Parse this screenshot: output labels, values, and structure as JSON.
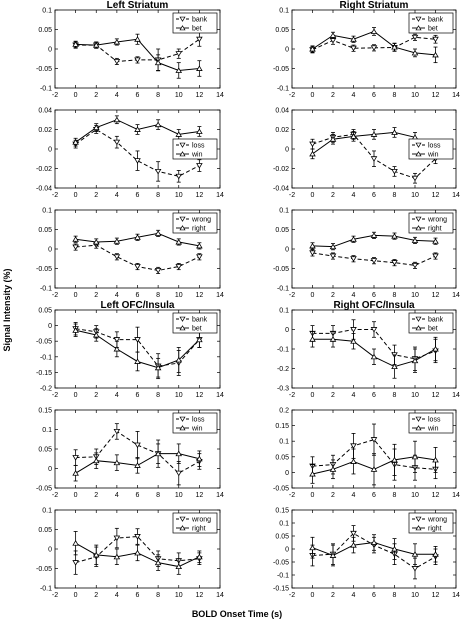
{
  "figure": {
    "ylabel": "Signal Intensity (%)",
    "xlabel": "BOLD Onset Time (s)"
  },
  "chart_data": [
    {
      "type": "line",
      "title": "Left Striatum",
      "x": [
        0,
        2,
        4,
        6,
        8,
        10,
        12
      ],
      "xlim": [
        -2,
        14
      ],
      "xticks": [
        -2,
        0,
        2,
        4,
        6,
        8,
        10,
        12,
        14
      ],
      "ylim": [
        -0.1,
        0.1
      ],
      "yticks": [
        -0.1,
        -0.05,
        0,
        0.05,
        0.1
      ],
      "ytick_labels": [
        "-0.1",
        "-0.05",
        "0",
        "0.05",
        "0.1"
      ],
      "legend_position": "top-right",
      "series": [
        {
          "name": "bank",
          "marker": "triangle-down",
          "dash": true,
          "values": [
            0.01,
            0.01,
            -0.032,
            -0.028,
            -0.028,
            -0.012,
            0.025
          ],
          "errors": [
            0.008,
            0.008,
            0.008,
            0.008,
            0.028,
            0.012,
            0.018
          ]
        },
        {
          "name": "bet",
          "marker": "triangle-up",
          "dash": false,
          "values": [
            0.012,
            0.01,
            0.018,
            0.025,
            -0.035,
            -0.055,
            -0.05
          ],
          "errors": [
            0.008,
            0.008,
            0.008,
            0.013,
            0.02,
            0.02,
            0.02
          ]
        }
      ]
    },
    {
      "type": "line",
      "title": "Right Striatum",
      "x": [
        0,
        2,
        4,
        6,
        8,
        10,
        12
      ],
      "xlim": [
        -2,
        14
      ],
      "xticks": [
        -2,
        0,
        2,
        4,
        6,
        8,
        10,
        12,
        14
      ],
      "ylim": [
        -0.1,
        0.1
      ],
      "yticks": [
        -0.1,
        -0.05,
        0,
        0.05,
        0.1
      ],
      "ytick_labels": [
        "-0.1",
        "-0.05",
        "0",
        "0.05",
        "0.1"
      ],
      "legend_position": "top-right",
      "series": [
        {
          "name": "bank",
          "marker": "triangle-down",
          "dash": true,
          "values": [
            -0.002,
            0.022,
            0.002,
            0.003,
            0.004,
            0.03,
            0.025
          ],
          "errors": [
            0.008,
            0.01,
            0.008,
            0.008,
            0.01,
            0.008,
            0.01
          ]
        },
        {
          "name": "bet",
          "marker": "triangle-up",
          "dash": false,
          "values": [
            0.0,
            0.035,
            0.025,
            0.045,
            0.005,
            -0.01,
            -0.015
          ],
          "errors": [
            0.008,
            0.008,
            0.008,
            0.01,
            0.01,
            0.01,
            0.02
          ]
        }
      ]
    },
    {
      "type": "line",
      "title": "",
      "x": [
        0,
        2,
        4,
        6,
        8,
        10,
        12
      ],
      "xlim": [
        -2,
        14
      ],
      "xticks": [
        -2,
        0,
        2,
        4,
        6,
        8,
        10,
        12,
        14
      ],
      "ylim": [
        -0.04,
        0.04
      ],
      "yticks": [
        -0.04,
        -0.02,
        0,
        0.02,
        0.04
      ],
      "ytick_labels": [
        "-0.04",
        "-0.02",
        "0",
        "0.02",
        "0.04"
      ],
      "legend_position": "right",
      "series": [
        {
          "name": "loss",
          "marker": "triangle-down",
          "dash": true,
          "values": [
            0.005,
            0.02,
            0.007,
            -0.012,
            -0.023,
            -0.028,
            -0.017
          ],
          "errors": [
            0.004,
            0.004,
            0.006,
            0.01,
            0.01,
            0.006,
            0.006
          ]
        },
        {
          "name": "win",
          "marker": "triangle-up",
          "dash": false,
          "values": [
            0.007,
            0.022,
            0.03,
            0.02,
            0.025,
            0.015,
            0.018
          ],
          "errors": [
            0.004,
            0.004,
            0.004,
            0.005,
            0.005,
            0.005,
            0.005
          ]
        }
      ]
    },
    {
      "type": "line",
      "title": "",
      "x": [
        0,
        2,
        4,
        6,
        8,
        10,
        12
      ],
      "xlim": [
        -2,
        14
      ],
      "xticks": [
        -2,
        0,
        2,
        4,
        6,
        8,
        10,
        12,
        14
      ],
      "ylim": [
        -0.04,
        0.04
      ],
      "yticks": [
        -0.04,
        -0.02,
        0,
        0.02,
        0.04
      ],
      "ytick_labels": [
        "-0.04",
        "-0.02",
        "0",
        "0.02",
        "0.04"
      ],
      "legend_position": "right",
      "series": [
        {
          "name": "loss",
          "marker": "triangle-down",
          "dash": true,
          "values": [
            0.005,
            0.012,
            0.015,
            -0.01,
            -0.023,
            -0.03,
            -0.01
          ],
          "errors": [
            0.005,
            0.005,
            0.005,
            0.008,
            0.005,
            0.005,
            0.005
          ]
        },
        {
          "name": "win",
          "marker": "triangle-up",
          "dash": false,
          "values": [
            -0.005,
            0.01,
            0.013,
            0.015,
            0.017,
            0.012,
            -0.005
          ],
          "errors": [
            0.005,
            0.005,
            0.005,
            0.005,
            0.005,
            0.005,
            0.005
          ]
        }
      ]
    },
    {
      "type": "line",
      "title": "",
      "x": [
        0,
        2,
        4,
        6,
        8,
        10,
        12
      ],
      "xlim": [
        -2,
        14
      ],
      "xticks": [
        -2,
        0,
        2,
        4,
        6,
        8,
        10,
        12,
        14
      ],
      "ylim": [
        -0.1,
        0.1
      ],
      "yticks": [
        -0.1,
        -0.05,
        0,
        0.05,
        0.1
      ],
      "ytick_labels": [
        "-0.1",
        "-0.05",
        "0",
        "0.05",
        "0.1"
      ],
      "legend_position": "top-right",
      "series": [
        {
          "name": "wrong",
          "marker": "triangle-down",
          "dash": true,
          "values": [
            0.005,
            0.01,
            -0.02,
            -0.045,
            -0.055,
            -0.045,
            -0.02
          ],
          "errors": [
            0.008,
            0.008,
            0.008,
            0.008,
            0.008,
            0.008,
            0.008
          ]
        },
        {
          "name": "right",
          "marker": "triangle-up",
          "dash": false,
          "values": [
            0.025,
            0.018,
            0.02,
            0.03,
            0.04,
            0.018,
            0.008
          ],
          "errors": [
            0.008,
            0.008,
            0.008,
            0.008,
            0.008,
            0.008,
            0.008
          ]
        }
      ]
    },
    {
      "type": "line",
      "title": "",
      "x": [
        0,
        2,
        4,
        6,
        8,
        10,
        12
      ],
      "xlim": [
        -2,
        14
      ],
      "xticks": [
        -2,
        0,
        2,
        4,
        6,
        8,
        10,
        12,
        14
      ],
      "ylim": [
        -0.1,
        0.1
      ],
      "yticks": [
        -0.1,
        -0.05,
        0,
        0.05,
        0.1
      ],
      "ytick_labels": [
        "-0.1",
        "-0.05",
        "0",
        "0.05",
        "0.1"
      ],
      "legend_position": "top-right",
      "series": [
        {
          "name": "wrong",
          "marker": "triangle-down",
          "dash": true,
          "values": [
            -0.01,
            -0.018,
            -0.025,
            -0.03,
            -0.035,
            -0.042,
            -0.018
          ],
          "errors": [
            0.008,
            0.008,
            0.008,
            0.008,
            0.008,
            0.008,
            0.008
          ]
        },
        {
          "name": "right",
          "marker": "triangle-up",
          "dash": false,
          "values": [
            0.008,
            0.006,
            0.025,
            0.035,
            0.033,
            0.022,
            0.02
          ],
          "errors": [
            0.008,
            0.008,
            0.008,
            0.008,
            0.008,
            0.008,
            0.008
          ]
        }
      ]
    },
    {
      "type": "line",
      "title": "Left OFC/Insula",
      "x": [
        0,
        2,
        4,
        6,
        8,
        10,
        12
      ],
      "xlim": [
        -2,
        14
      ],
      "xticks": [
        -2,
        0,
        2,
        4,
        6,
        8,
        10,
        12,
        14
      ],
      "ylim": [
        -0.2,
        0.05
      ],
      "yticks": [
        -0.2,
        -0.15,
        -0.1,
        -0.05,
        0,
        0.05
      ],
      "ytick_labels": [
        "-0.2",
        "-0.15",
        "-0.1",
        "-0.05",
        "0",
        "0.05"
      ],
      "legend_position": "top-right",
      "series": [
        {
          "name": "bank",
          "marker": "triangle-down",
          "dash": true,
          "values": [
            -0.01,
            -0.02,
            -0.045,
            -0.045,
            -0.13,
            -0.12,
            -0.045
          ],
          "errors": [
            0.02,
            0.02,
            0.025,
            0.04,
            0.04,
            0.04,
            0.025
          ]
        },
        {
          "name": "bet",
          "marker": "triangle-up",
          "dash": false,
          "values": [
            -0.015,
            -0.03,
            -0.075,
            -0.115,
            -0.135,
            -0.11,
            -0.045
          ],
          "errors": [
            0.02,
            0.02,
            0.025,
            0.03,
            0.03,
            0.04,
            0.025
          ]
        }
      ]
    },
    {
      "type": "line",
      "title": "Right OFC/Insula",
      "x": [
        0,
        2,
        4,
        6,
        8,
        10,
        12
      ],
      "xlim": [
        -2,
        14
      ],
      "xticks": [
        -2,
        0,
        2,
        4,
        6,
        8,
        10,
        12,
        14
      ],
      "ylim": [
        -0.3,
        0.1
      ],
      "yticks": [
        -0.3,
        -0.2,
        -0.1,
        0,
        0.1
      ],
      "ytick_labels": [
        "-0.3",
        "-0.2",
        "-0.1",
        "0",
        "0.1"
      ],
      "legend_position": "top-right",
      "series": [
        {
          "name": "bank",
          "marker": "triangle-down",
          "dash": true,
          "values": [
            -0.02,
            -0.02,
            0.0,
            0.0,
            -0.13,
            -0.15,
            -0.11
          ],
          "errors": [
            0.04,
            0.04,
            0.05,
            0.04,
            0.05,
            0.06,
            0.06
          ]
        },
        {
          "name": "bet",
          "marker": "triangle-up",
          "dash": false,
          "values": [
            -0.05,
            -0.05,
            -0.06,
            -0.14,
            -0.19,
            -0.16,
            -0.1
          ],
          "errors": [
            0.04,
            0.04,
            0.04,
            0.04,
            0.06,
            0.06,
            0.06
          ]
        }
      ]
    },
    {
      "type": "line",
      "title": "",
      "x": [
        0,
        2,
        4,
        6,
        8,
        10,
        12
      ],
      "xlim": [
        -2,
        14
      ],
      "xticks": [
        -2,
        0,
        2,
        4,
        6,
        8,
        10,
        12,
        14
      ],
      "ylim": [
        -0.05,
        0.15
      ],
      "yticks": [
        -0.05,
        0,
        0.05,
        0.1,
        0.15
      ],
      "ytick_labels": [
        "-0.05",
        "0",
        "0.05",
        "0.1",
        "0.15"
      ],
      "legend_position": "top-right",
      "series": [
        {
          "name": "loss",
          "marker": "triangle-down",
          "dash": true,
          "values": [
            0.028,
            0.03,
            0.095,
            0.06,
            0.038,
            -0.012,
            0.018
          ],
          "errors": [
            0.02,
            0.02,
            0.02,
            0.035,
            0.035,
            0.03,
            0.02
          ]
        },
        {
          "name": "win",
          "marker": "triangle-up",
          "dash": false,
          "values": [
            -0.012,
            0.02,
            0.015,
            0.008,
            0.038,
            0.038,
            0.025
          ],
          "errors": [
            0.02,
            0.02,
            0.02,
            0.02,
            0.025,
            0.025,
            0.02
          ]
        }
      ]
    },
    {
      "type": "line",
      "title": "",
      "x": [
        0,
        2,
        4,
        6,
        8,
        10,
        12
      ],
      "xlim": [
        -2,
        14
      ],
      "xticks": [
        -2,
        0,
        2,
        4,
        6,
        8,
        10,
        12,
        14
      ],
      "ylim": [
        -0.05,
        0.2
      ],
      "yticks": [
        -0.05,
        0,
        0.05,
        0.1,
        0.15,
        0.2
      ],
      "ytick_labels": [
        "-0.05",
        "0",
        "0.05",
        "0.1",
        "0.15",
        "0.2"
      ],
      "legend_position": "top-right",
      "series": [
        {
          "name": "loss",
          "marker": "triangle-down",
          "dash": true,
          "values": [
            0.02,
            0.025,
            0.085,
            0.105,
            0.025,
            0.015,
            0.01
          ],
          "errors": [
            0.03,
            0.03,
            0.04,
            0.05,
            0.05,
            0.04,
            0.03
          ]
        },
        {
          "name": "win",
          "marker": "triangle-up",
          "dash": false,
          "values": [
            -0.005,
            0.01,
            0.035,
            0.01,
            0.04,
            0.05,
            0.04
          ],
          "errors": [
            0.03,
            0.03,
            0.04,
            0.05,
            0.05,
            0.05,
            0.04
          ]
        }
      ]
    },
    {
      "type": "line",
      "title": "",
      "x": [
        0,
        2,
        4,
        6,
        8,
        10,
        12
      ],
      "xlim": [
        -2,
        14
      ],
      "xticks": [
        -2,
        0,
        2,
        4,
        6,
        8,
        10,
        12,
        14
      ],
      "ylim": [
        -0.1,
        0.1
      ],
      "yticks": [
        -0.1,
        -0.05,
        0,
        0.05,
        0.1
      ],
      "ytick_labels": [
        "-0.1",
        "-0.05",
        "0",
        "0.05",
        "0.1"
      ],
      "legend_position": "top-right",
      "series": [
        {
          "name": "wrong",
          "marker": "triangle-down",
          "dash": true,
          "values": [
            -0.035,
            -0.02,
            0.028,
            0.032,
            -0.025,
            -0.03,
            -0.025
          ],
          "errors": [
            0.03,
            0.025,
            0.025,
            0.02,
            0.02,
            0.02,
            0.015
          ]
        },
        {
          "name": "right",
          "marker": "triangle-up",
          "dash": false,
          "values": [
            0.015,
            -0.015,
            -0.02,
            -0.01,
            -0.035,
            -0.045,
            -0.02
          ],
          "errors": [
            0.03,
            0.025,
            0.02,
            0.02,
            0.02,
            0.02,
            0.015
          ]
        }
      ]
    },
    {
      "type": "line",
      "title": "",
      "x": [
        0,
        2,
        4,
        6,
        8,
        10,
        12
      ],
      "xlim": [
        -2,
        14
      ],
      "xticks": [
        -2,
        0,
        2,
        4,
        6,
        8,
        10,
        12,
        14
      ],
      "ylim": [
        -0.15,
        0.15
      ],
      "yticks": [
        -0.15,
        -0.1,
        -0.05,
        0,
        0.05,
        0.1,
        0.15
      ],
      "ytick_labels": [
        "-0.15",
        "-0.1",
        "-0.05",
        "0",
        "0.05",
        "0.1",
        "0.15"
      ],
      "legend_position": "top-right",
      "series": [
        {
          "name": "wrong",
          "marker": "triangle-down",
          "dash": true,
          "values": [
            -0.025,
            -0.02,
            0.06,
            0.015,
            -0.02,
            -0.075,
            -0.03
          ],
          "errors": [
            0.04,
            0.04,
            0.03,
            0.03,
            0.04,
            0.04,
            0.03
          ]
        },
        {
          "name": "right",
          "marker": "triangle-up",
          "dash": false,
          "values": [
            0.005,
            -0.025,
            0.015,
            0.025,
            0.0,
            -0.02,
            -0.02
          ],
          "errors": [
            0.04,
            0.04,
            0.03,
            0.03,
            0.04,
            0.04,
            0.03
          ]
        }
      ]
    }
  ]
}
